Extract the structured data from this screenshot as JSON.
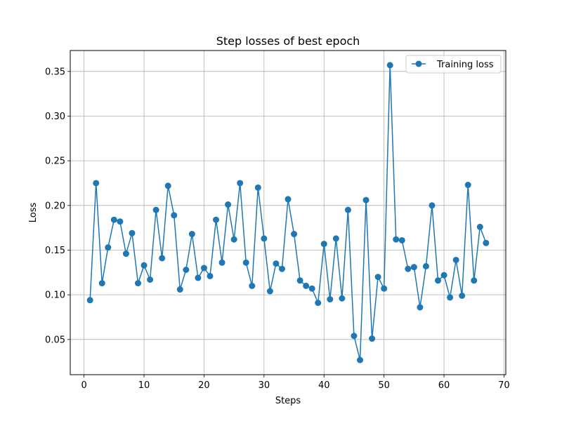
{
  "chart_data": {
    "type": "line",
    "title": "Step losses of best epoch",
    "xlabel": "Steps",
    "ylabel": "Loss",
    "xlim": [
      -2.3,
      70.3
    ],
    "ylim": [
      0.0106,
      0.3734
    ],
    "xticks": [
      0,
      10,
      20,
      30,
      40,
      50,
      60,
      70
    ],
    "yticks": [
      0.05,
      0.1,
      0.15,
      0.2,
      0.25,
      0.3,
      0.35
    ],
    "ytick_labels": [
      "0.05",
      "0.10",
      "0.15",
      "0.20",
      "0.25",
      "0.30",
      "0.35"
    ],
    "grid": true,
    "legend_position": "top-right",
    "series": [
      {
        "name": "Training loss",
        "color": "#1f77b4",
        "marker": "circle",
        "x": [
          1,
          2,
          3,
          4,
          5,
          6,
          7,
          8,
          9,
          10,
          11,
          12,
          13,
          14,
          15,
          16,
          17,
          18,
          19,
          20,
          21,
          22,
          23,
          24,
          25,
          26,
          27,
          28,
          29,
          30,
          31,
          32,
          33,
          34,
          35,
          36,
          37,
          38,
          39,
          40,
          41,
          42,
          43,
          44,
          45,
          46,
          47,
          48,
          49,
          50,
          51,
          52,
          53,
          54,
          55,
          56,
          57,
          58,
          59,
          60,
          61,
          62,
          63,
          64,
          65,
          66,
          67
        ],
        "y": [
          0.094,
          0.225,
          0.113,
          0.153,
          0.184,
          0.182,
          0.146,
          0.169,
          0.113,
          0.133,
          0.117,
          0.195,
          0.141,
          0.222,
          0.189,
          0.106,
          0.128,
          0.168,
          0.119,
          0.13,
          0.121,
          0.184,
          0.136,
          0.201,
          0.162,
          0.225,
          0.136,
          0.11,
          0.22,
          0.163,
          0.104,
          0.135,
          0.129,
          0.207,
          0.168,
          0.116,
          0.11,
          0.107,
          0.091,
          0.157,
          0.095,
          0.163,
          0.096,
          0.195,
          0.054,
          0.027,
          0.206,
          0.051,
          0.12,
          0.107,
          0.357,
          0.162,
          0.161,
          0.129,
          0.131,
          0.086,
          0.132,
          0.2,
          0.116,
          0.122,
          0.097,
          0.139,
          0.099,
          0.223,
          0.116,
          0.176,
          0.158
        ]
      }
    ]
  }
}
